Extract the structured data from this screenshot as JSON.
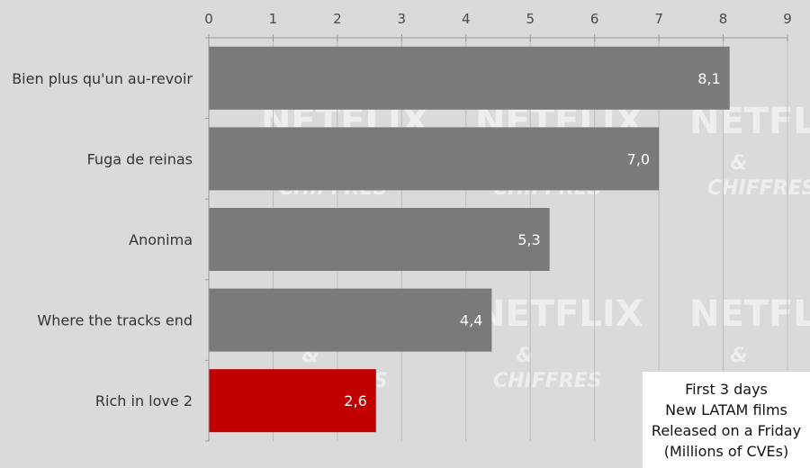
{
  "chart_data": {
    "type": "bar",
    "orientation": "horizontal",
    "categories": [
      "Bien plus qu'un au-revoir",
      "Fuga de reinas",
      "Anonima",
      "Where the tracks end",
      "Rich in love 2"
    ],
    "values": [
      8.1,
      7.0,
      5.3,
      4.4,
      2.6
    ],
    "value_labels": [
      "8,1",
      "7,0",
      "5,3",
      "4,4",
      "2,6"
    ],
    "bar_colors": [
      "#7a7a7a",
      "#7a7a7a",
      "#7a7a7a",
      "#7a7a7a",
      "#c00000"
    ],
    "x_ticks": [
      0,
      1,
      2,
      3,
      4,
      5,
      6,
      7,
      8,
      9
    ],
    "xlim": [
      0,
      9
    ],
    "x_axis_position": "top",
    "grid": true,
    "legend_placement": "bottom-right",
    "title_lines": [
      "First 3 days",
      "New LATAM films",
      "Released on a Friday",
      "(Millions of CVEs)"
    ]
  },
  "watermark": {
    "brand": "NETFLIX",
    "ampersand": "&",
    "sub": "CHIFFRES"
  }
}
